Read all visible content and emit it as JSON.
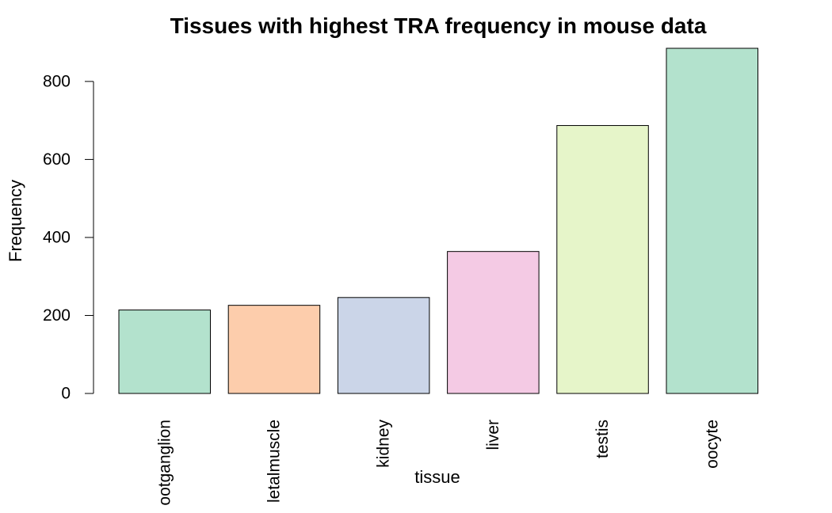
{
  "chart_data": {
    "type": "bar",
    "title": "Tissues with highest TRA frequency in mouse data",
    "xlabel": "tissue",
    "ylabel": "Frequency",
    "categories": [
      "ootganglion",
      "letalmuscle",
      "kidney",
      "liver",
      "testis",
      "oocyte"
    ],
    "values": [
      214,
      226,
      246,
      364,
      687,
      885
    ],
    "yticks": [
      0,
      200,
      400,
      600,
      800
    ],
    "ylim": [
      0,
      885
    ],
    "grid": false,
    "legend": "none",
    "colors": [
      "#b3e2cd",
      "#fdcdac",
      "#cbd5e8",
      "#f4cae4",
      "#e6f5c9",
      "#b3e2cd"
    ]
  }
}
